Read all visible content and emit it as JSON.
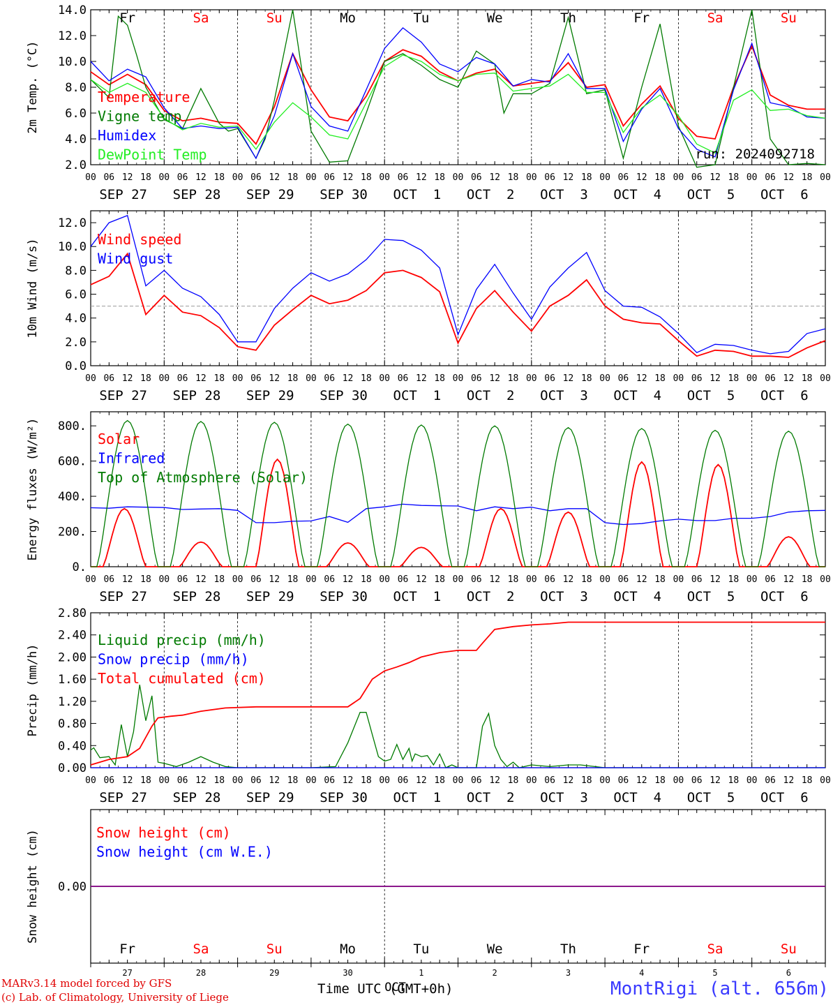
{
  "colors": {
    "red": "#ff0000",
    "green": "#007a00",
    "blue": "#0000ff",
    "lightgreen": "#22ee22",
    "purple": "#800080",
    "grid": "#555555"
  },
  "day_labels": [
    "Fr",
    "Sa",
    "Su",
    "Mo",
    "Tu",
    "We",
    "Th",
    "Fr",
    "Sa",
    "Su"
  ],
  "day_label_weekend": [
    false,
    true,
    true,
    false,
    false,
    false,
    false,
    false,
    true,
    true
  ],
  "date_labels": [
    "SEP 27",
    "SEP 28",
    "SEP 29",
    "SEP 30",
    "OCT  1",
    "OCT  2",
    "OCT  3",
    "OCT  4",
    "OCT  5",
    "OCT  6"
  ],
  "hour_ticks": [
    "00",
    "06",
    "12",
    "18"
  ],
  "bottom_day_numbers": [
    "27",
    "28",
    "29",
    "30",
    "1",
    "2",
    "3",
    "4",
    "5",
    "6"
  ],
  "bottom_oct_label": "OCT",
  "run_label": "run: 2024092718",
  "footer": {
    "model": "MARv3.14 model forced by GFS",
    "lab": "(c) Lab. of Climatology, University of Liege",
    "axis_title": "Time UTC (GMT+0h)",
    "station": "MontRigi (alt. 656m)"
  },
  "chart_data": [
    {
      "type": "line",
      "ylabel": "2m Temp. (°C)",
      "ylim": [
        2.0,
        14.0
      ],
      "yticks": [
        "2.0",
        "4.0",
        "6.0",
        "8.0",
        "10.0",
        "12.0",
        "14.0"
      ],
      "x_unit": "hours since Sep 27 00 UTC",
      "series": [
        {
          "name": "Temperature",
          "color": "red",
          "x": [
            0,
            6,
            12,
            18,
            24,
            30,
            36,
            42,
            48,
            54,
            60,
            66,
            72,
            78,
            84,
            90,
            96,
            102,
            108,
            114,
            120,
            126,
            132,
            138,
            144,
            150,
            156,
            162,
            168,
            174,
            180,
            186,
            192,
            198,
            204,
            210,
            216,
            222,
            228,
            234,
            240
          ],
          "y": [
            9.2,
            8.2,
            9.0,
            8.2,
            6.2,
            5.4,
            5.6,
            5.3,
            5.2,
            3.6,
            6.5,
            10.6,
            7.8,
            5.7,
            5.4,
            7.3,
            10.0,
            10.9,
            10.4,
            9.2,
            8.5,
            9.1,
            9.4,
            8.1,
            8.3,
            8.5,
            9.9,
            8.0,
            8.2,
            5.0,
            6.7,
            8.1,
            5.6,
            4.2,
            4.0,
            8.0,
            11.2,
            7.4,
            6.6,
            6.3,
            6.3
          ]
        },
        {
          "name": "Vigne temp",
          "color": "green",
          "x": [
            0,
            6,
            9,
            12,
            15,
            18,
            24,
            30,
            36,
            42,
            45,
            48,
            54,
            57,
            60,
            66,
            72,
            78,
            84,
            90,
            96,
            102,
            108,
            114,
            120,
            126,
            132,
            135,
            138,
            144,
            150,
            156,
            162,
            168,
            174,
            180,
            186,
            192,
            198,
            204,
            210,
            216,
            222,
            228,
            234,
            240
          ],
          "y": [
            8.6,
            7.2,
            13.5,
            12.8,
            10.5,
            8.0,
            5.5,
            4.8,
            7.9,
            5.2,
            4.6,
            4.8,
            2.5,
            4.0,
            7.0,
            14.0,
            4.6,
            2.2,
            2.3,
            6.0,
            10.0,
            10.6,
            9.7,
            8.6,
            8.0,
            10.8,
            9.8,
            6.0,
            7.5,
            7.5,
            8.3,
            13.4,
            7.5,
            7.8,
            2.5,
            8.0,
            12.9,
            5.0,
            1.8,
            2.0,
            8.0,
            14.0,
            4.0,
            2.0,
            2.1,
            2.0
          ]
        },
        {
          "name": "Humidex",
          "color": "blue",
          "x": [
            0,
            6,
            12,
            18,
            24,
            30,
            36,
            42,
            48,
            54,
            60,
            66,
            72,
            78,
            84,
            90,
            96,
            102,
            108,
            114,
            120,
            126,
            132,
            138,
            144,
            150,
            156,
            162,
            168,
            174,
            180,
            186,
            192,
            198,
            204,
            210,
            216,
            222,
            228,
            234,
            240
          ],
          "y": [
            10.0,
            8.5,
            9.4,
            8.8,
            6.4,
            4.8,
            5.0,
            4.8,
            4.9,
            2.5,
            5.8,
            10.6,
            6.5,
            5.0,
            4.6,
            7.8,
            11.0,
            12.6,
            11.5,
            9.8,
            9.2,
            10.3,
            9.8,
            8.1,
            8.6,
            8.4,
            10.6,
            7.9,
            7.9,
            3.8,
            6.3,
            7.9,
            4.8,
            3.2,
            2.6,
            7.8,
            11.4,
            6.8,
            6.5,
            5.7,
            5.6
          ]
        },
        {
          "name": "DewPoint Temp",
          "color": "lightgreen",
          "x": [
            0,
            6,
            12,
            18,
            24,
            30,
            36,
            42,
            48,
            54,
            60,
            66,
            72,
            78,
            84,
            90,
            96,
            102,
            108,
            114,
            120,
            126,
            132,
            138,
            144,
            150,
            156,
            162,
            168,
            174,
            180,
            186,
            192,
            198,
            204,
            210,
            216,
            222,
            228,
            234,
            240
          ],
          "y": [
            8.6,
            7.6,
            8.3,
            7.6,
            5.6,
            4.7,
            5.2,
            4.9,
            5.0,
            3.2,
            5.3,
            6.8,
            5.7,
            4.3,
            4.0,
            6.8,
            9.6,
            10.5,
            10.0,
            9.0,
            8.5,
            9.0,
            9.1,
            7.7,
            7.9,
            8.1,
            9.0,
            7.6,
            7.6,
            4.5,
            6.4,
            7.4,
            5.8,
            3.6,
            2.9,
            7.0,
            7.8,
            6.2,
            6.3,
            5.8,
            5.6
          ]
        }
      ]
    },
    {
      "type": "line",
      "ylabel": "10m Wind (m/s)",
      "ylim": [
        0.0,
        13.0
      ],
      "yticks": [
        "0.0",
        "2.0",
        "4.0",
        "6.0",
        "8.0",
        "10.0",
        "12.0"
      ],
      "reference_line": 5.0,
      "series": [
        {
          "name": "Wind speed",
          "color": "red",
          "x": [
            0,
            6,
            12,
            18,
            24,
            30,
            36,
            42,
            48,
            54,
            60,
            66,
            72,
            78,
            84,
            90,
            96,
            102,
            108,
            114,
            120,
            126,
            132,
            138,
            144,
            150,
            156,
            162,
            168,
            174,
            180,
            186,
            192,
            198,
            204,
            210,
            216,
            222,
            228,
            234,
            240
          ],
          "y": [
            6.8,
            7.5,
            9.4,
            4.3,
            5.9,
            4.5,
            4.2,
            3.2,
            1.6,
            1.3,
            3.4,
            4.7,
            5.9,
            5.2,
            5.5,
            6.3,
            7.8,
            8.0,
            7.4,
            6.2,
            1.9,
            4.8,
            6.3,
            4.5,
            2.9,
            5.0,
            5.9,
            7.2,
            5.0,
            3.9,
            3.6,
            3.5,
            2.1,
            0.8,
            1.3,
            1.2,
            0.8,
            0.8,
            0.7,
            1.5,
            2.1
          ]
        },
        {
          "name": "Wind gust",
          "color": "blue",
          "x": [
            0,
            6,
            12,
            18,
            24,
            30,
            36,
            42,
            48,
            54,
            60,
            66,
            72,
            78,
            84,
            90,
            96,
            102,
            108,
            114,
            120,
            126,
            132,
            138,
            144,
            150,
            156,
            162,
            168,
            174,
            180,
            186,
            192,
            198,
            204,
            210,
            216,
            222,
            228,
            234,
            240
          ],
          "y": [
            10.0,
            12.0,
            12.6,
            6.7,
            8.0,
            6.5,
            5.8,
            4.3,
            2.0,
            2.0,
            4.8,
            6.5,
            7.8,
            7.1,
            7.7,
            8.9,
            10.6,
            10.5,
            9.7,
            8.2,
            2.6,
            6.4,
            8.5,
            6.1,
            3.9,
            6.6,
            8.2,
            9.5,
            6.3,
            5.0,
            4.9,
            4.1,
            2.7,
            1.1,
            1.8,
            1.7,
            1.3,
            1.0,
            1.2,
            2.7,
            3.1
          ]
        }
      ]
    },
    {
      "type": "line",
      "ylabel": "Energy fluxes (W/m²)",
      "ylim": [
        0,
        880
      ],
      "yticks": [
        "0.",
        "200.",
        "400.",
        "600.",
        "800."
      ],
      "series": [
        {
          "name": "Solar",
          "color": "red",
          "peaks": [
            [
              11,
              330
            ],
            [
              36,
              140
            ],
            [
              61,
              610
            ],
            [
              84,
              135
            ],
            [
              108,
              110
            ],
            [
              134,
              330
            ],
            [
              156,
              310
            ],
            [
              180,
              595
            ],
            [
              205,
              580
            ],
            [
              228,
              170
            ]
          ]
        },
        {
          "name": "Infrared",
          "color": "blue",
          "x": [
            0,
            6,
            12,
            18,
            24,
            30,
            36,
            42,
            48,
            54,
            60,
            66,
            72,
            78,
            84,
            90,
            96,
            102,
            108,
            114,
            120,
            126,
            132,
            138,
            144,
            150,
            156,
            162,
            168,
            174,
            180,
            186,
            192,
            198,
            204,
            210,
            216,
            222,
            228,
            234,
            240
          ],
          "y": [
            335,
            332,
            340,
            338,
            336,
            325,
            328,
            330,
            320,
            250,
            250,
            258,
            260,
            285,
            252,
            330,
            340,
            355,
            348,
            346,
            345,
            318,
            340,
            330,
            338,
            318,
            330,
            330,
            250,
            240,
            245,
            260,
            270,
            262,
            262,
            275,
            275,
            285,
            310,
            318,
            320
          ]
        },
        {
          "name": "Top of Atmosphere (Solar)",
          "color": "green",
          "peaks": [
            [
              12,
              830
            ],
            [
              36,
              825
            ],
            [
              60,
              820
            ],
            [
              84,
              810
            ],
            [
              108,
              805
            ],
            [
              132,
              800
            ],
            [
              156,
              790
            ],
            [
              180,
              785
            ],
            [
              204,
              775
            ],
            [
              228,
              770
            ]
          ]
        }
      ]
    },
    {
      "type": "line",
      "ylabel": "Precip (mm/h)",
      "ylim": [
        0.0,
        2.8
      ],
      "yticks": [
        "0.00",
        "0.40",
        "0.80",
        "1.20",
        "1.60",
        "2.00",
        "2.40",
        "2.80"
      ],
      "series": [
        {
          "name": "Liquid precip (mm/h)",
          "color": "green",
          "x": [
            0,
            1,
            3,
            6,
            8,
            10,
            12,
            14,
            16,
            18,
            20,
            22,
            24,
            28,
            32,
            36,
            40,
            44,
            48,
            72,
            80,
            84,
            88,
            90,
            92,
            94,
            96,
            98,
            100,
            102,
            104,
            105,
            106,
            108,
            110,
            112,
            114,
            116,
            118,
            120,
            126,
            128,
            130,
            132,
            134,
            136,
            138,
            140,
            144,
            150,
            156,
            160,
            168,
            240
          ],
          "y": [
            0.32,
            0.36,
            0.18,
            0.2,
            0.05,
            0.78,
            0.2,
            0.65,
            1.5,
            0.85,
            1.3,
            0.1,
            0.08,
            0.02,
            0.1,
            0.2,
            0.1,
            0.02,
            0.0,
            0.0,
            0.02,
            0.45,
            1.0,
            1.0,
            0.6,
            0.2,
            0.12,
            0.15,
            0.42,
            0.15,
            0.35,
            0.12,
            0.25,
            0.2,
            0.22,
            0.05,
            0.25,
            0.0,
            0.05,
            0.0,
            0.0,
            0.75,
            0.98,
            0.4,
            0.15,
            0.02,
            0.1,
            0.0,
            0.05,
            0.02,
            0.05,
            0.05,
            0.0,
            0.0
          ]
        },
        {
          "name": "Snow precip (mm/h)",
          "color": "blue",
          "x": [
            0,
            240
          ],
          "y": [
            0,
            0
          ]
        },
        {
          "name": "Total cumulated (cm)",
          "color": "red",
          "x": [
            0,
            6,
            12,
            16,
            20,
            22,
            26,
            30,
            36,
            44,
            54,
            72,
            84,
            88,
            92,
            96,
            100,
            104,
            108,
            114,
            120,
            126,
            128,
            132,
            138,
            144,
            150,
            156,
            240
          ],
          "y": [
            0.05,
            0.15,
            0.2,
            0.35,
            0.75,
            0.9,
            0.93,
            0.95,
            1.02,
            1.08,
            1.1,
            1.1,
            1.1,
            1.25,
            1.6,
            1.75,
            1.82,
            1.9,
            2.0,
            2.08,
            2.12,
            2.12,
            2.25,
            2.5,
            2.55,
            2.58,
            2.6,
            2.63,
            2.63
          ]
        }
      ]
    },
    {
      "type": "line",
      "ylabel": "Snow height (cm)",
      "ylim": [
        -1.0,
        1.0
      ],
      "yticks": [
        "0.00"
      ],
      "series": [
        {
          "name": "Snow height (cm)",
          "color": "red",
          "x": [
            0,
            240
          ],
          "y": [
            0,
            0
          ]
        },
        {
          "name": "Snow height (cm W.E.)",
          "color": "blue",
          "x": [
            0,
            240
          ],
          "y": [
            0,
            0
          ]
        }
      ]
    }
  ]
}
